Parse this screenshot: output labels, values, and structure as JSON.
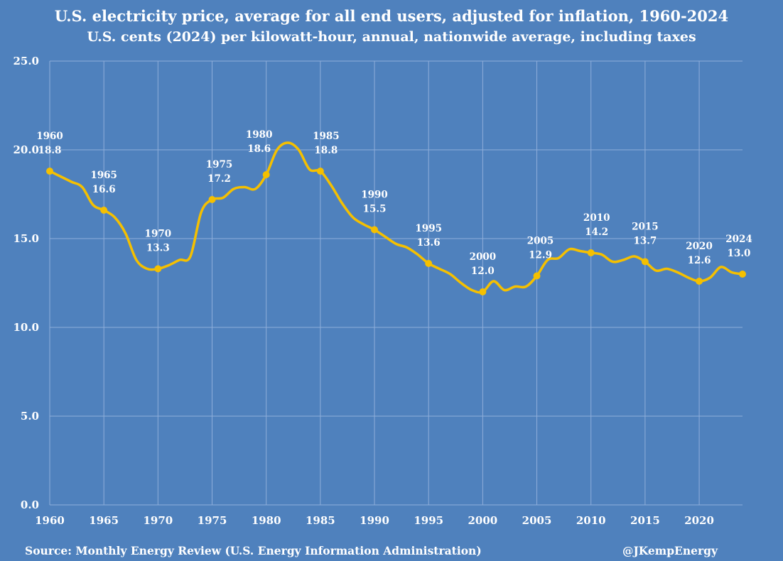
{
  "chart_data": {
    "type": "line",
    "title": "U.S. electricity price, average for all end users, adjusted for inflation, 1960-2024",
    "subtitle": "U.S. cents (2024) per kilowatt-hour, annual, nationwide average, including taxes",
    "xlabel": "",
    "ylabel": "",
    "xlim": [
      1960,
      2024
    ],
    "ylim": [
      0,
      25
    ],
    "grid": true,
    "y_ticks": [
      "0.0",
      "5.0",
      "10.0",
      "15.0",
      "20.0",
      "25.0"
    ],
    "x_ticks": [
      "1960",
      "1965",
      "1970",
      "1975",
      "1980",
      "1985",
      "1990",
      "1995",
      "2000",
      "2005",
      "2010",
      "2015",
      "2020"
    ],
    "series": [
      {
        "name": "Electricity price",
        "color": "#F5C000",
        "x": [
          1960,
          1961,
          1962,
          1963,
          1964,
          1965,
          1966,
          1967,
          1968,
          1969,
          1970,
          1971,
          1972,
          1973,
          1974,
          1975,
          1976,
          1977,
          1978,
          1979,
          1980,
          1981,
          1982,
          1983,
          1984,
          1985,
          1986,
          1987,
          1988,
          1989,
          1990,
          1991,
          1992,
          1993,
          1994,
          1995,
          1996,
          1997,
          1998,
          1999,
          2000,
          2001,
          2002,
          2003,
          2004,
          2005,
          2006,
          2007,
          2008,
          2009,
          2010,
          2011,
          2012,
          2013,
          2014,
          2015,
          2016,
          2017,
          2018,
          2019,
          2020,
          2021,
          2022,
          2023,
          2024
        ],
        "values": [
          18.8,
          18.5,
          18.2,
          17.9,
          16.9,
          16.6,
          16.2,
          15.3,
          13.8,
          13.3,
          13.3,
          13.5,
          13.8,
          14.0,
          16.5,
          17.2,
          17.3,
          17.8,
          17.9,
          17.8,
          18.6,
          20.0,
          20.4,
          20.0,
          18.9,
          18.8,
          18.0,
          17.0,
          16.2,
          15.8,
          15.5,
          15.1,
          14.7,
          14.5,
          14.1,
          13.6,
          13.3,
          13.0,
          12.5,
          12.1,
          12.0,
          12.6,
          12.1,
          12.3,
          12.3,
          12.9,
          13.8,
          13.9,
          14.4,
          14.3,
          14.2,
          14.1,
          13.7,
          13.8,
          14.0,
          13.7,
          13.2,
          13.3,
          13.1,
          12.8,
          12.6,
          12.8,
          13.4,
          13.1,
          13.0
        ],
        "labels": [
          {
            "year": "1960",
            "value": "18.8"
          },
          {
            "year": "1965",
            "value": "16.6"
          },
          {
            "year": "1970",
            "value": "13.3"
          },
          {
            "year": "1975",
            "value": "17.2"
          },
          {
            "year": "1980",
            "value": "18.6"
          },
          {
            "year": "1985",
            "value": "18.8"
          },
          {
            "year": "1990",
            "value": "15.5"
          },
          {
            "year": "1995",
            "value": "13.6"
          },
          {
            "year": "2000",
            "value": "12.0"
          },
          {
            "year": "2005",
            "value": "12.9"
          },
          {
            "year": "2010",
            "value": "14.2"
          },
          {
            "year": "2015",
            "value": "13.7"
          },
          {
            "year": "2020",
            "value": "12.6"
          },
          {
            "year": "2024",
            "value": "13.0"
          }
        ]
      }
    ]
  },
  "footer": {
    "source": "Source: Monthly Energy Review (U.S. Energy Information Administration)",
    "credit": "@JKempEnergy"
  },
  "colors": {
    "background": "#4F81BD",
    "line": "#F5C000",
    "grid": "#8FAEDA",
    "text": "#FFFFFF"
  }
}
